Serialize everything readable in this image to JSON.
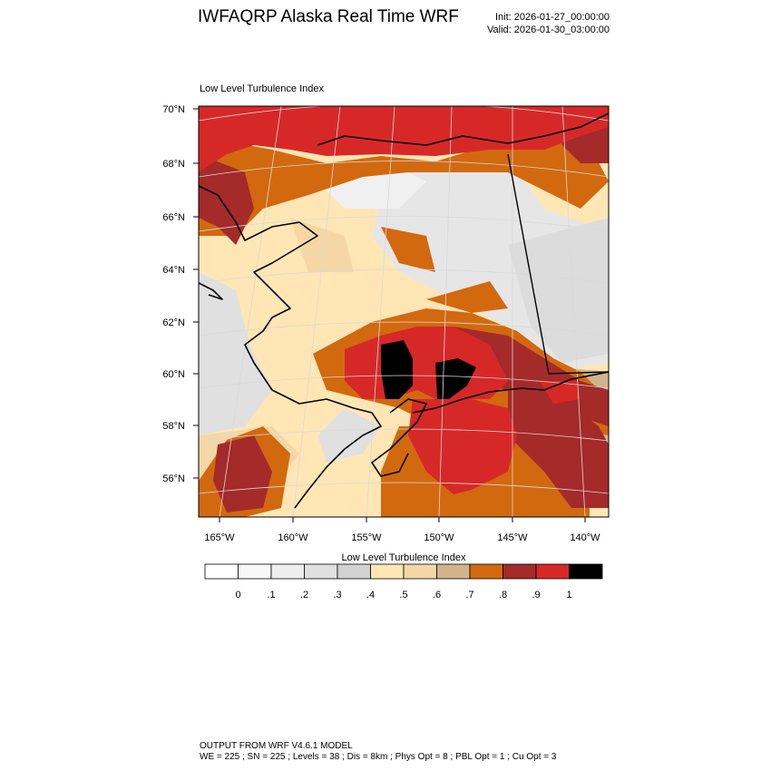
{
  "header": {
    "title": "IWFAQRP Alaska Real Time WRF",
    "init": "Init: 2026-01-27_00:00:00",
    "valid": "Valid: 2026-01-30_03:00:00"
  },
  "map": {
    "subtitle": "Low Level Turbulence Index",
    "lat_labels": [
      "70°N",
      "68°N",
      "66°N",
      "64°N",
      "62°N",
      "60°N",
      "58°N",
      "56°N"
    ],
    "lon_labels": [
      "165°W",
      "160°W",
      "155°W",
      "150°W",
      "145°W",
      "140°W"
    ]
  },
  "colorbar": {
    "title": "Low Level Turbulence Index",
    "tick_labels": [
      "0",
      ".1",
      ".2",
      ".3",
      ".4",
      ".5",
      ".6",
      ".7",
      ".8",
      ".9",
      "1"
    ],
    "colors": [
      "#ffffff",
      "#f8f8f8",
      "#eeeeee",
      "#e0e0e0",
      "#d2d2d2",
      "#ffe6b4",
      "#f5d7a5",
      "#d2b48c",
      "#d2690f",
      "#a52a2a",
      "#d72828",
      "#000000"
    ]
  },
  "footer": {
    "line1": "OUTPUT FROM WRF V4.6.1 MODEL",
    "line2": "WE = 225 ; SN = 225 ; Levels = 38 ; Dis = 8km ; Phys Opt = 8 ; PBL Opt = 1 ; Cu Opt = 3"
  }
}
